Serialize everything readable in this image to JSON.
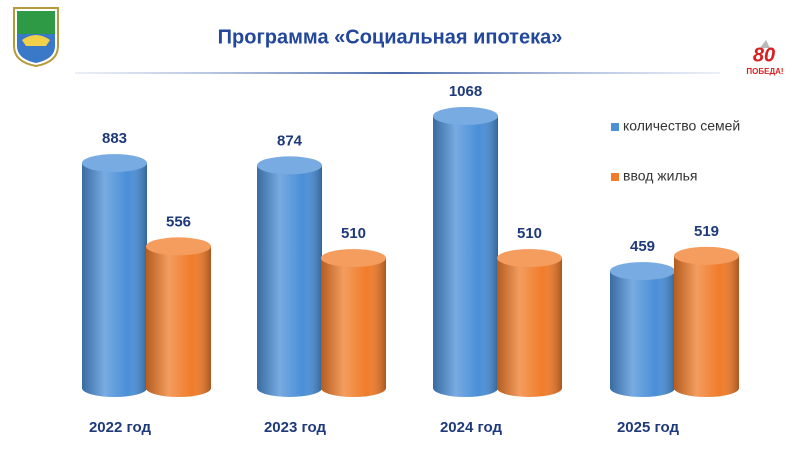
{
  "chart_data": {
    "type": "bar",
    "title": "Программа «Социальная ипотека»",
    "categories": [
      "2022 год",
      "2023 год",
      "2024 год",
      "2025 год"
    ],
    "series": [
      {
        "name": "количество семей",
        "color": "#4a8fd8",
        "values": [
          883,
          874,
          1068,
          459
        ]
      },
      {
        "name": "ввод жилья",
        "color": "#f07c2a",
        "values": [
          556,
          510,
          510,
          519
        ]
      }
    ],
    "legend": "right"
  },
  "badge": {
    "number": "80",
    "text": "ПОБЕДА!"
  }
}
